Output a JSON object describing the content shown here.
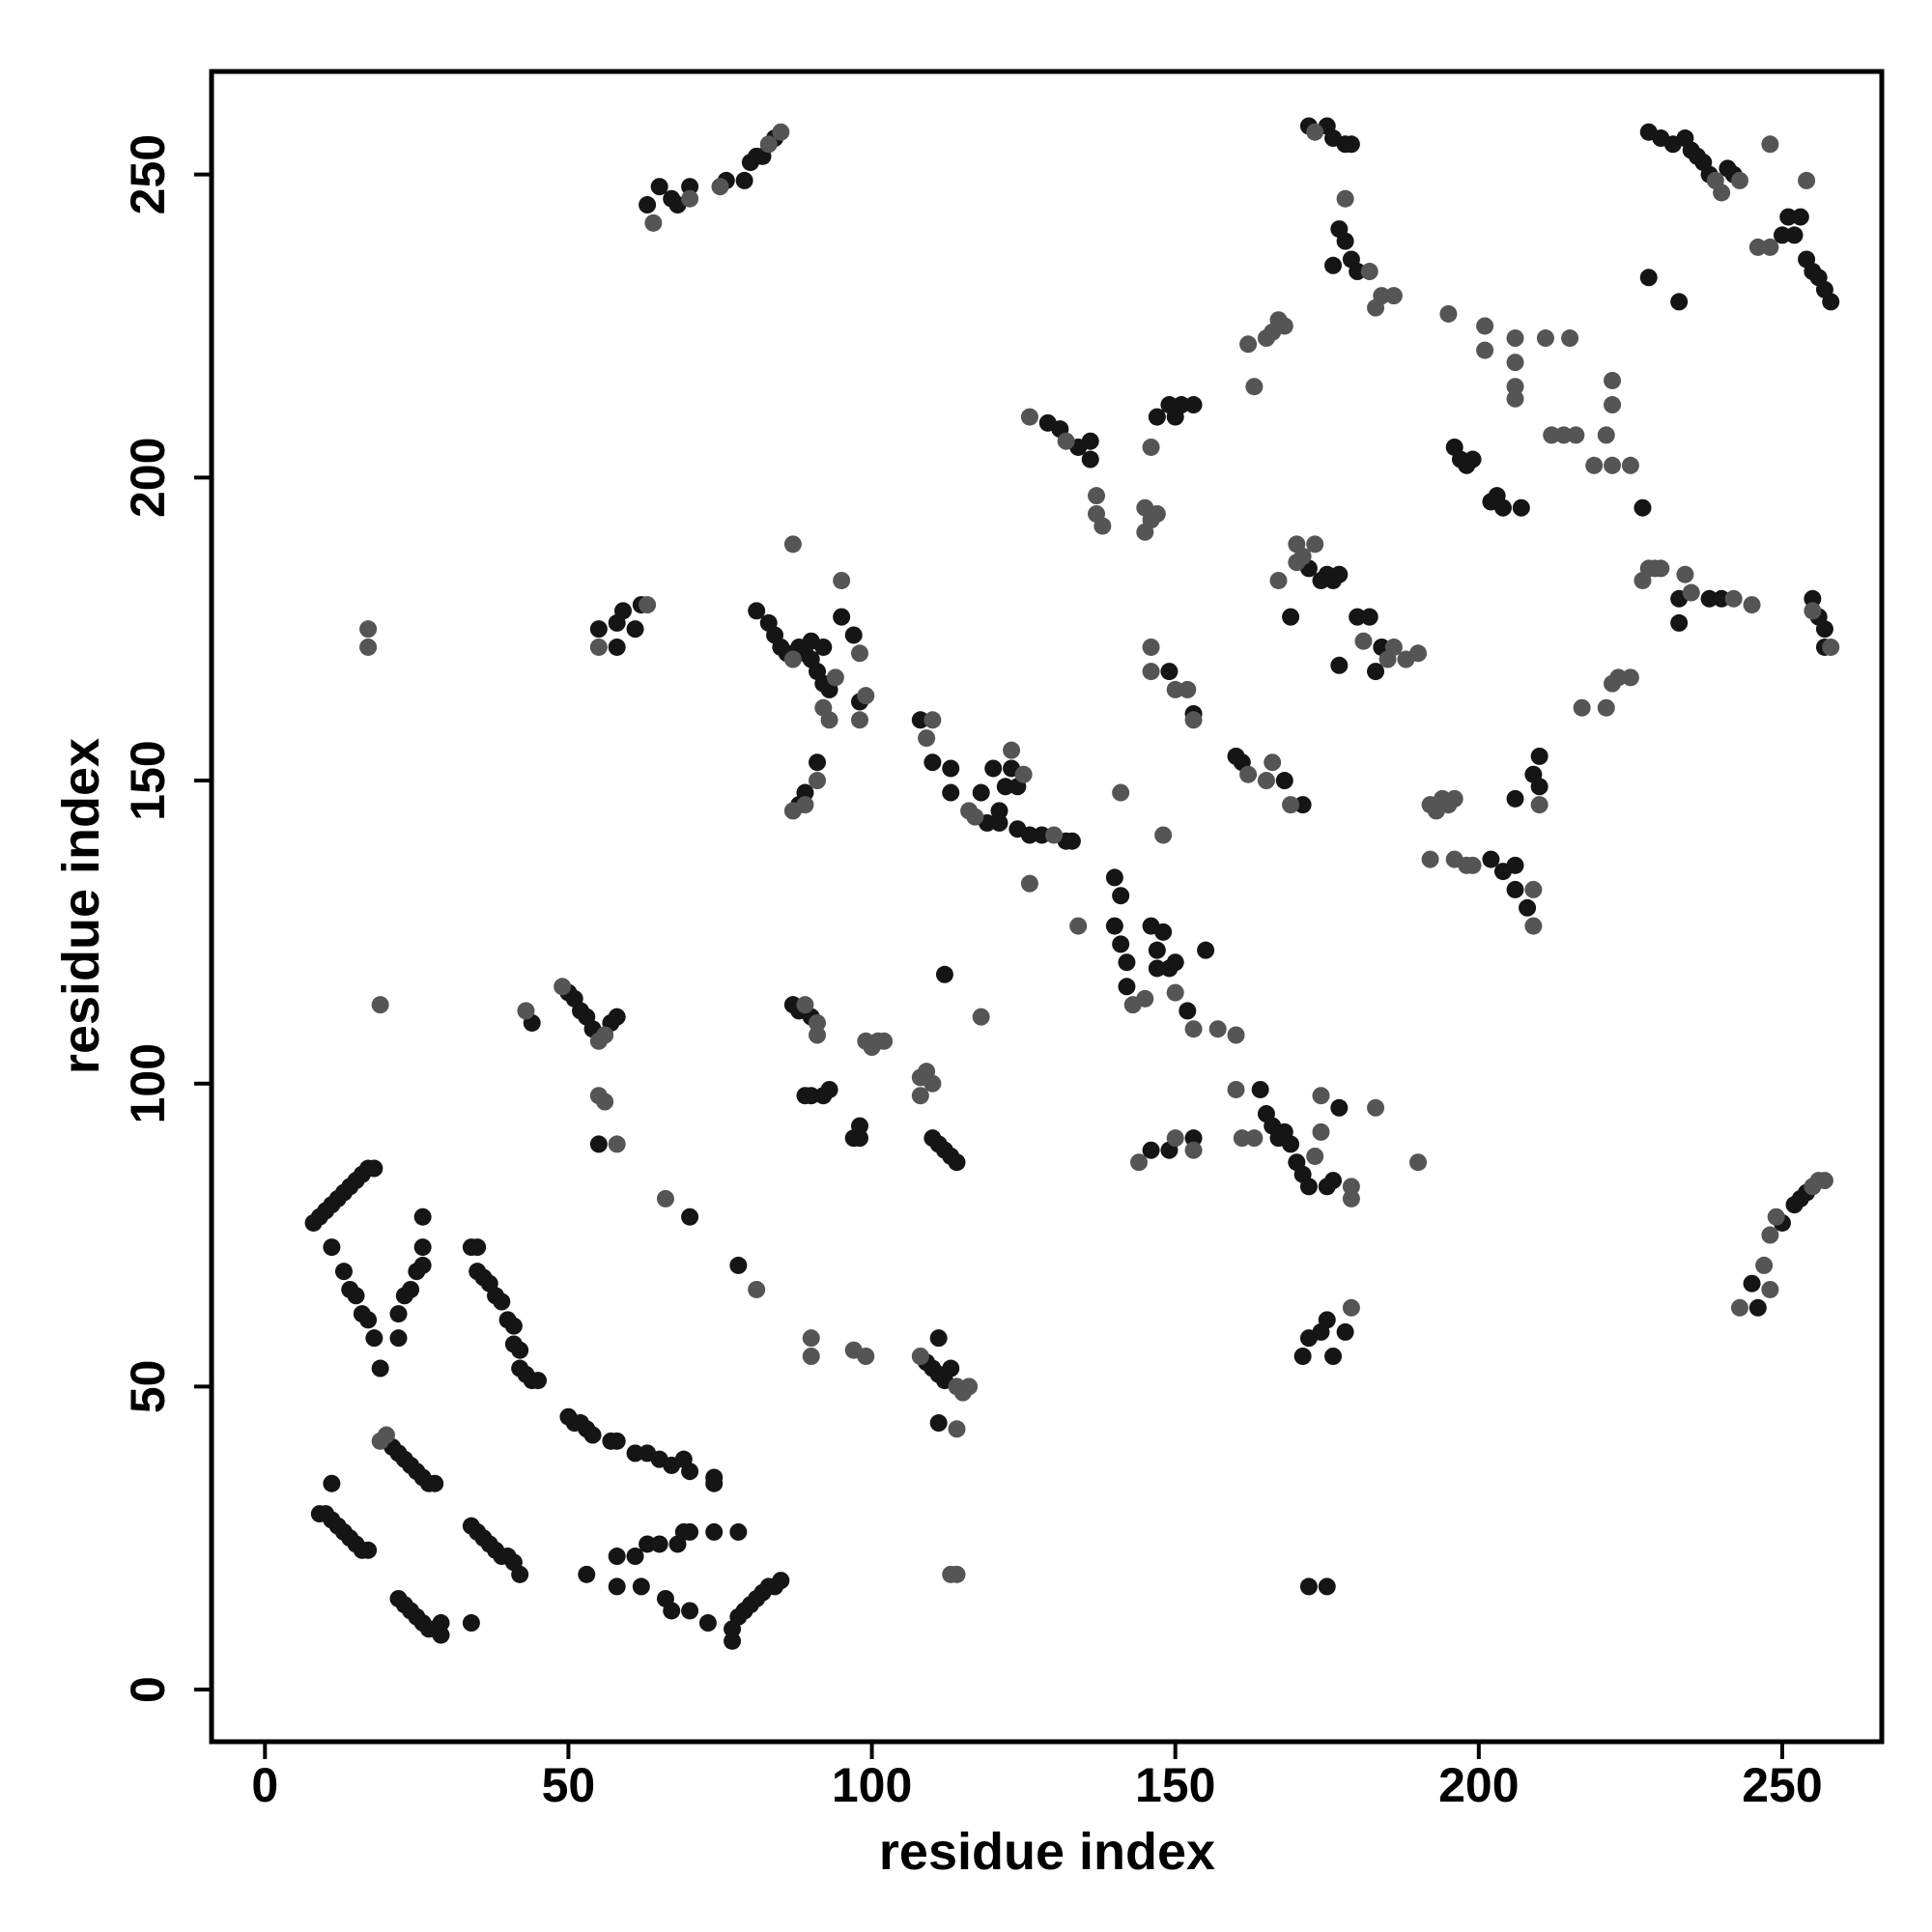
{
  "chart_data": {
    "type": "scatter",
    "x_label": "residue index",
    "y_label": "residue index",
    "xlim": [
      -8.8,
      266.4
    ],
    "ylim": [
      -8.6,
      267
    ],
    "xticks": [
      0,
      50,
      100,
      150,
      200,
      250
    ],
    "yticks": [
      0,
      50,
      100,
      150,
      200,
      250
    ],
    "series": [
      {
        "color": "#151515",
        "x": [
          9,
          10,
          11,
          12,
          13,
          14,
          15,
          16,
          17,
          11,
          21,
          22,
          23,
          24,
          25,
          26,
          27,
          28,
          22,
          23,
          24,
          25,
          26,
          27,
          28,
          29,
          29,
          34,
          34,
          35,
          36,
          37,
          38,
          39,
          40,
          41,
          42,
          8,
          9,
          10,
          11,
          12,
          13,
          14,
          15,
          16,
          17,
          18,
          11,
          13,
          14,
          15,
          16,
          17,
          18,
          19,
          22,
          22,
          23,
          24,
          25,
          26,
          26,
          26,
          34,
          35,
          35,
          36,
          37,
          38,
          39,
          40,
          41,
          41,
          42,
          42,
          43,
          44,
          45,
          50,
          51,
          52,
          53,
          54,
          57,
          58,
          61,
          63,
          65,
          67,
          69,
          70,
          74,
          74,
          53,
          58,
          58,
          61,
          62,
          63,
          65,
          66,
          67,
          68,
          69,
          70,
          70,
          73,
          74,
          77,
          77,
          78,
          79,
          80,
          81,
          82,
          83,
          84,
          85,
          78,
          44,
          50,
          51,
          52,
          53,
          54,
          57,
          58,
          55,
          55,
          58,
          58,
          59,
          61,
          62,
          70,
          78,
          63,
          65,
          67,
          68,
          70,
          76,
          79,
          80,
          81,
          82,
          84,
          81,
          83,
          84,
          85,
          86,
          88,
          89,
          90,
          90,
          91,
          92,
          93,
          92,
          95,
          97,
          98,
          88,
          89,
          91,
          87,
          88,
          90,
          89,
          90,
          92,
          93,
          97,
          98,
          98,
          108,
          110,
          113,
          113,
          118,
          119,
          120,
          121,
          121,
          122,
          123,
          124,
          124,
          126,
          128,
          132,
          133,
          110,
          111,
          112,
          113,
          114,
          109,
          110,
          111,
          112,
          113,
          111,
          111,
          112,
          129,
          131,
          134,
          136,
          136,
          140,
          141,
          140,
          141,
          142,
          142,
          146,
          147,
          147,
          148,
          149,
          150,
          152,
          155,
          147,
          149,
          151,
          153,
          150,
          149,
          153,
          146,
          149,
          153,
          160,
          161,
          168,
          171,
          164,
          165,
          166,
          167,
          168,
          169,
          170,
          171,
          172,
          175,
          176,
          177,
          172,
          174,
          175,
          176,
          177,
          169,
          177,
          172,
          175,
          176,
          178,
          179,
          177,
          178,
          179,
          180,
          176,
          180,
          182,
          183,
          184,
          171,
          172,
          174,
          175,
          176,
          178,
          172,
          175,
          196,
          197,
          198,
          199,
          202,
          203,
          204,
          207,
          202,
          204,
          206,
          206,
          208,
          206,
          209,
          210,
          210,
          227,
          233,
          238,
          240,
          255,
          256,
          257,
          257,
          233,
          228,
          230,
          232,
          234,
          235,
          236,
          237,
          238,
          241,
          242,
          250,
          251,
          252,
          253,
          254,
          255,
          256,
          257,
          258,
          228,
          233,
          245,
          246,
          250,
          252,
          253,
          254
        ],
        "y": [
          29,
          29,
          28,
          27,
          26,
          25,
          24,
          23,
          23,
          34,
          40,
          39,
          38,
          37,
          36,
          35,
          34,
          34,
          15,
          14,
          13,
          12,
          11,
          10,
          10,
          9,
          11,
          11,
          27,
          26,
          25,
          24,
          23,
          22,
          22,
          21,
          19,
          77,
          78,
          79,
          80,
          81,
          82,
          83,
          84,
          85,
          86,
          86,
          73,
          69,
          66,
          65,
          62,
          61,
          58,
          53,
          58,
          62,
          65,
          66,
          69,
          70,
          73,
          78,
          73,
          73,
          69,
          68,
          67,
          65,
          64,
          61,
          60,
          57,
          56,
          53,
          52,
          51,
          51,
          45,
          44,
          44,
          43,
          42,
          41,
          41,
          39,
          39,
          38,
          37,
          38,
          36,
          35,
          34,
          19,
          22,
          17,
          22,
          17,
          24,
          24,
          15,
          13,
          24,
          26,
          26,
          13,
          11,
          26,
          8,
          10,
          12,
          13,
          14,
          15,
          16,
          17,
          17,
          18,
          26,
          110,
          115,
          114,
          112,
          111,
          109,
          110,
          111,
          90,
          175,
          172,
          176,
          178,
          175,
          179,
          78,
          70,
          245,
          248,
          246,
          245,
          248,
          249,
          249,
          252,
          253,
          253,
          256,
          178,
          176,
          174,
          172,
          171,
          172,
          171,
          170,
          173,
          168,
          166,
          165,
          172,
          177,
          174,
          163,
          146,
          148,
          153,
          113,
          112,
          111,
          98,
          98,
          98,
          99,
          91,
          93,
          91,
          160,
          153,
          152,
          148,
          148,
          143,
          152,
          145,
          143,
          149,
          152,
          142,
          149,
          141,
          141,
          140,
          140,
          91,
          90,
          89,
          88,
          87,
          54,
          53,
          52,
          51,
          53,
          58,
          44,
          118,
          209,
          208,
          205,
          206,
          203,
          134,
          131,
          126,
          123,
          120,
          116,
          126,
          122,
          119,
          125,
          119,
          120,
          112,
          122,
          210,
          212,
          212,
          212,
          210,
          168,
          161,
          89,
          89,
          91,
          154,
          153,
          150,
          146,
          99,
          95,
          93,
          91,
          92,
          90,
          87,
          85,
          83,
          83,
          84,
          96,
          185,
          183,
          184,
          183,
          184,
          177,
          169,
          258,
          258,
          256,
          255,
          255,
          241,
          239,
          236,
          234,
          235,
          177,
          177,
          168,
          172,
          55,
          58,
          59,
          61,
          55,
          59,
          17,
          17,
          205,
          203,
          202,
          203,
          196,
          197,
          195,
          195,
          137,
          135,
          136,
          132,
          129,
          147,
          151,
          149,
          154,
          195,
          180,
          180,
          180,
          180,
          177,
          175,
          172,
          176,
          257,
          256,
          255,
          256,
          254,
          253,
          252,
          250,
          251,
          250,
          240,
          243,
          240,
          243,
          236,
          234,
          233,
          231,
          229,
          233,
          229,
          67,
          63,
          77,
          80,
          81,
          82
        ]
      },
      {
        "color": "#555555",
        "x": [
          17,
          17,
          19,
          43,
          49,
          55,
          56,
          55,
          56,
          58,
          55,
          63,
          19,
          20,
          66,
          81,
          90,
          90,
          97,
          99,
          64,
          70,
          75,
          83,
          85,
          87,
          95,
          98,
          98,
          99,
          92,
          93,
          94,
          87,
          87,
          89,
          91,
          89,
          91,
          91,
          99,
          100,
          101,
          102,
          108,
          108,
          109,
          110,
          109,
          110,
          116,
          117,
          123,
          125,
          130,
          126,
          114,
          113,
          108,
          114,
          115,
          116,
          114,
          118,
          126,
          132,
          137,
          137,
          138,
          134,
          143,
          145,
          150,
          153,
          157,
          160,
          145,
          145,
          146,
          147,
          146,
          141,
          148,
          146,
          146,
          150,
          152,
          153,
          144,
          150,
          153,
          162,
          165,
          166,
          169,
          160,
          161,
          163,
          173,
          174,
          174,
          179,
          179,
          183,
          190,
          162,
          163,
          165,
          166,
          167,
          168,
          167,
          170,
          170,
          171,
          173,
          173,
          178,
          182,
          183,
          184,
          186,
          181,
          185,
          186,
          188,
          190,
          179,
          192,
          193,
          194,
          195,
          196,
          192,
          196,
          198,
          199,
          195,
          201,
          201,
          206,
          206,
          206,
          206,
          211,
          215,
          209,
          209,
          210,
          212,
          214,
          216,
          219,
          221,
          222,
          222,
          222,
          225,
          217,
          221,
          222,
          223,
          225,
          227,
          228,
          229,
          230,
          234,
          235,
          242,
          245,
          258,
          255,
          239,
          243,
          240,
          246,
          248,
          248,
          254,
          243,
          247,
          248,
          248,
          249,
          255,
          256,
          257
        ],
        "y": [
          175,
          172,
          113,
          112,
          116,
          107,
          108,
          98,
          97,
          90,
          172,
          179,
          41,
          42,
          81,
          66,
          58,
          55,
          56,
          55,
          242,
          246,
          248,
          255,
          257,
          189,
          183,
          171,
          160,
          164,
          162,
          160,
          167,
          170,
          145,
          146,
          150,
          113,
          110,
          108,
          107,
          106,
          107,
          107,
          101,
          98,
          102,
          100,
          157,
          160,
          145,
          144,
          155,
          151,
          141,
          133,
          19,
          19,
          55,
          50,
          49,
          50,
          43,
          111,
          210,
          206,
          197,
          194,
          192,
          126,
          113,
          114,
          115,
          109,
          109,
          108,
          195,
          191,
          193,
          194,
          205,
          148,
          141,
          168,
          172,
          165,
          165,
          160,
          87,
          91,
          89,
          151,
          150,
          153,
          146,
          99,
          91,
          91,
          88,
          92,
          98,
          81,
          83,
          96,
          87,
          222,
          215,
          223,
          224,
          226,
          225,
          183,
          186,
          189,
          187,
          189,
          257,
          246,
          234,
          228,
          230,
          230,
          173,
          170,
          172,
          170,
          171,
          63,
          146,
          145,
          147,
          146,
          147,
          137,
          137,
          136,
          136,
          227,
          225,
          221,
          223,
          219,
          213,
          215,
          223,
          223,
          132,
          126,
          146,
          207,
          207,
          207,
          202,
          207,
          212,
          216,
          202,
          202,
          162,
          162,
          166,
          167,
          167,
          183,
          185,
          185,
          185,
          184,
          181,
          180,
          179,
          172,
          178,
          249,
          249,
          247,
          238,
          238,
          255,
          249,
          63,
          70,
          66,
          75,
          78,
          83,
          84,
          84
        ]
      }
    ]
  }
}
